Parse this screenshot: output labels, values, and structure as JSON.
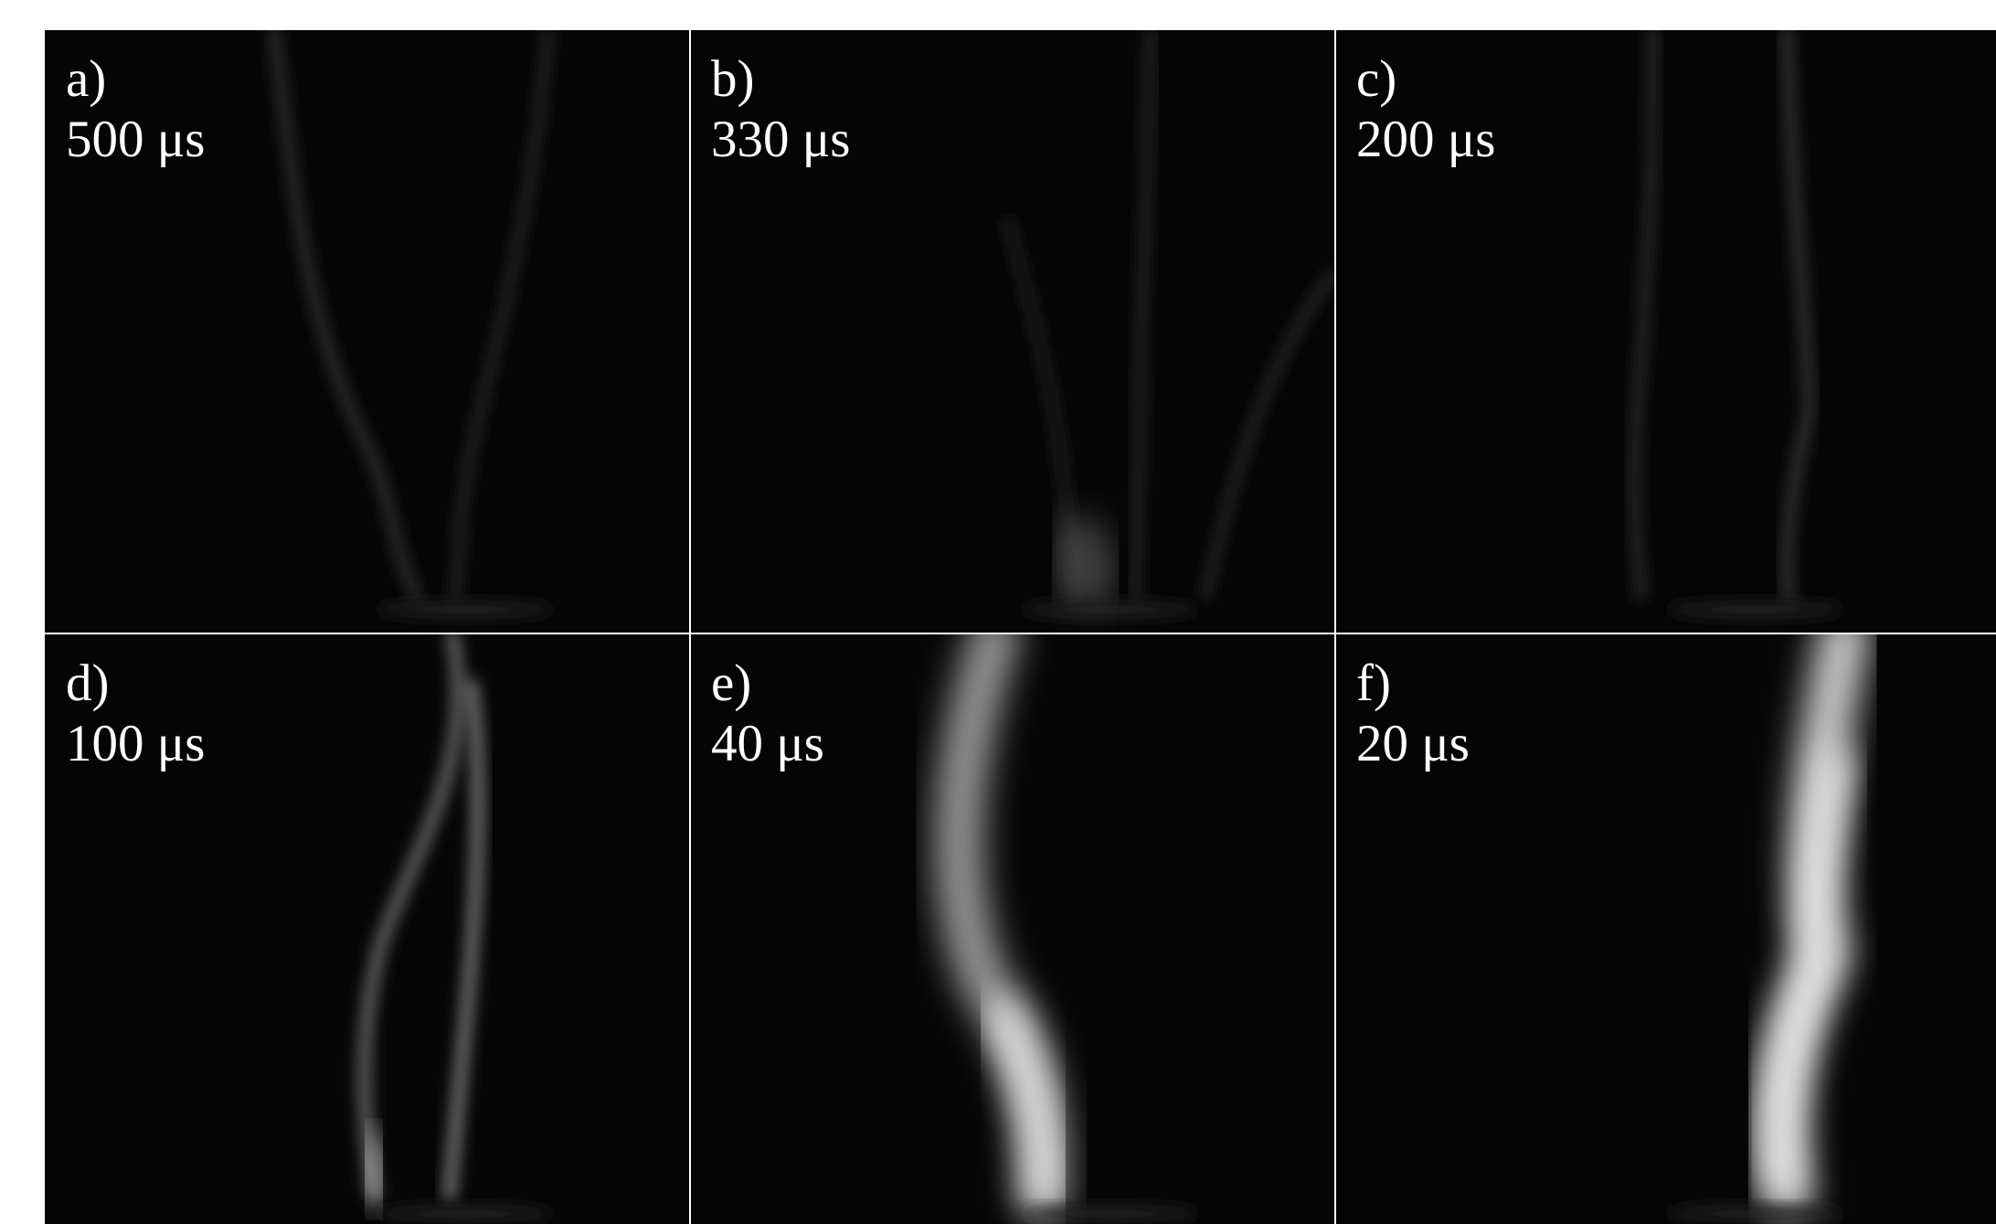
{
  "panels": [
    {
      "label": "a)",
      "time": "500 μs"
    },
    {
      "label": "b)",
      "time": "330 μs"
    },
    {
      "label": "c)",
      "time": "200 μs"
    },
    {
      "label": "d)",
      "time": "100 μs"
    },
    {
      "label": "e)",
      "time": "40 μs"
    },
    {
      "label": "f)",
      "time": "20 μs"
    }
  ]
}
